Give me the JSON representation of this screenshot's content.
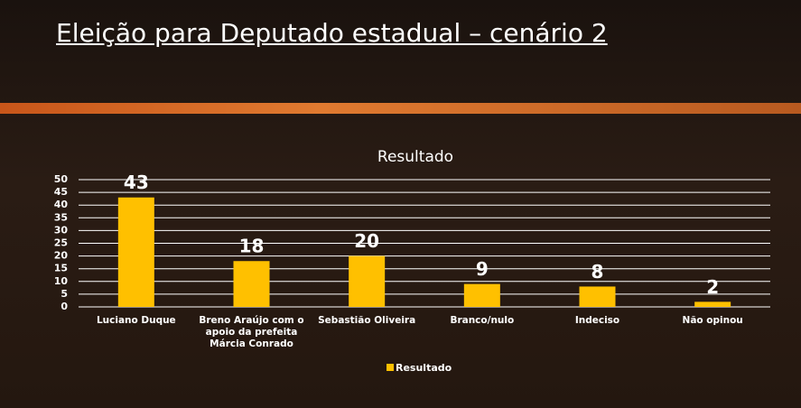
{
  "slide": {
    "title": "Eleição para Deputado estadual – cenário 2"
  },
  "chart_data": {
    "type": "bar",
    "title": "Resultado",
    "categories": [
      "Luciano Duque",
      "Breno Araújo com o apoio da prefeita Márcia Conrado",
      "Sebastião Oliveira",
      "Branco/nulo",
      "Indeciso",
      "Não opinou"
    ],
    "series": [
      {
        "name": "Resultado",
        "color": "#FFC000",
        "values": [
          43,
          18,
          20,
          9,
          8,
          2
        ]
      }
    ],
    "ylim": [
      0,
      50
    ],
    "yticks": [
      0,
      5,
      10,
      15,
      20,
      25,
      30,
      35,
      40,
      45,
      50
    ],
    "grid": true,
    "legend": "bottom",
    "data_labels": true
  }
}
